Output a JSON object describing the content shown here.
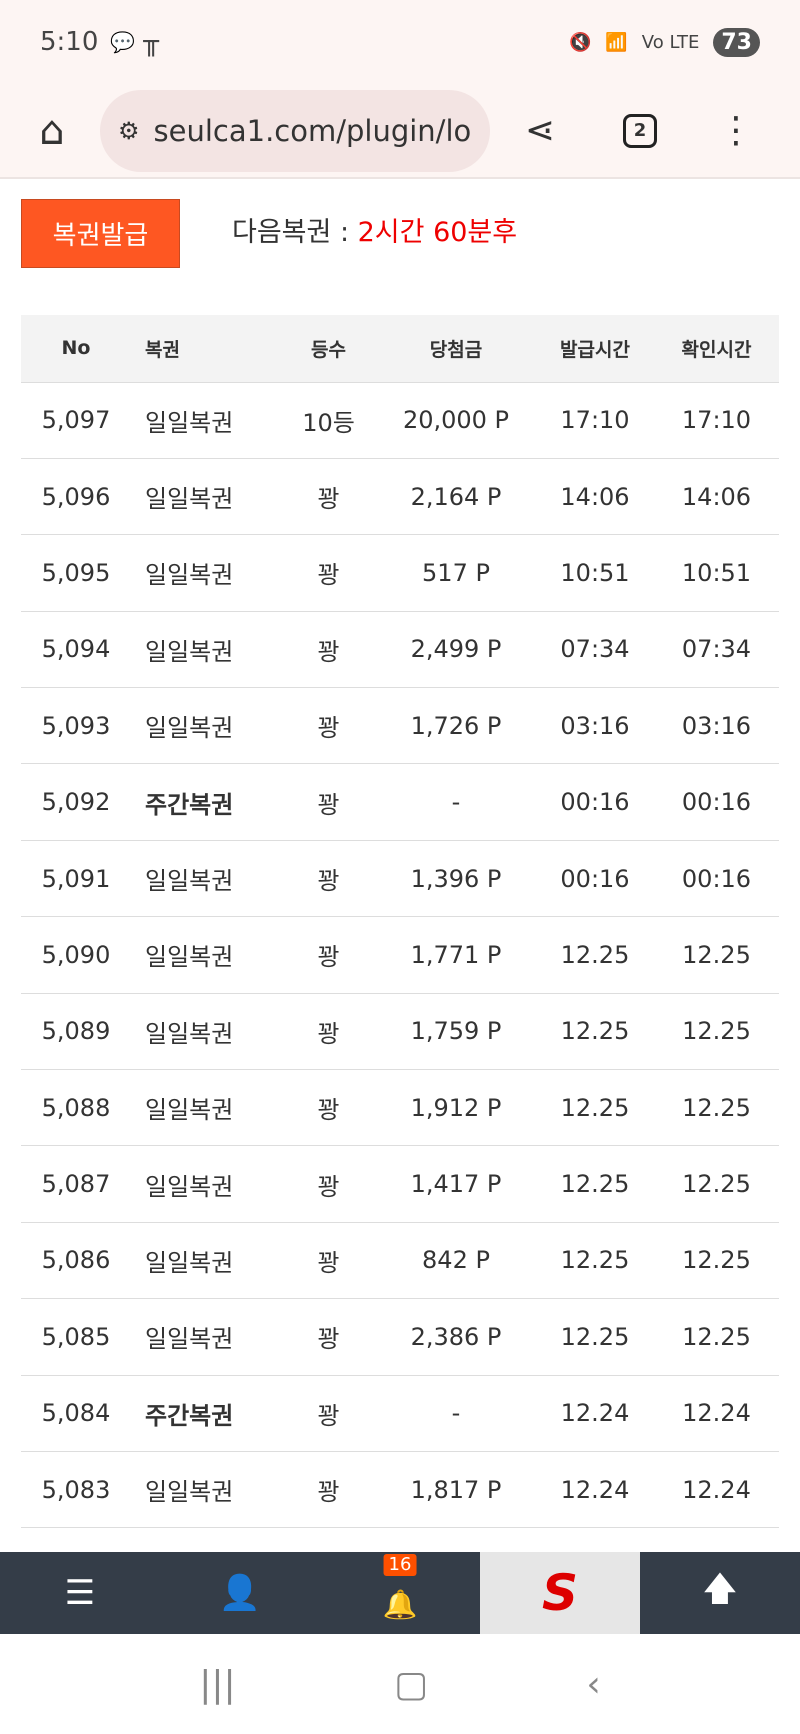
{
  "status": {
    "time": "5:10",
    "battery": "73",
    "network": "Vo LTE"
  },
  "browser": {
    "url": "seulca1.com/plugin/lo",
    "tab_count": "2"
  },
  "issue_button": "복권발급",
  "next_label": "다음복권 : ",
  "next_value": "2시간 60분후",
  "table": {
    "headers": [
      "No",
      "복권",
      "등수",
      "당첨금",
      "발급시간",
      "확인시간"
    ],
    "rows": [
      [
        "5,097",
        "일일복권",
        "10등",
        "20,000 P",
        "17:10",
        "17:10"
      ],
      [
        "5,096",
        "일일복권",
        "꽝",
        "2,164 P",
        "14:06",
        "14:06"
      ],
      [
        "5,095",
        "일일복권",
        "꽝",
        "517 P",
        "10:51",
        "10:51"
      ],
      [
        "5,094",
        "일일복권",
        "꽝",
        "2,499 P",
        "07:34",
        "07:34"
      ],
      [
        "5,093",
        "일일복권",
        "꽝",
        "1,726 P",
        "03:16",
        "03:16"
      ],
      [
        "5,092",
        "주간복권",
        "꽝",
        "-",
        "00:16",
        "00:16"
      ],
      [
        "5,091",
        "일일복권",
        "꽝",
        "1,396 P",
        "00:16",
        "00:16"
      ],
      [
        "5,090",
        "일일복권",
        "꽝",
        "1,771 P",
        "12.25",
        "12.25"
      ],
      [
        "5,089",
        "일일복권",
        "꽝",
        "1,759 P",
        "12.25",
        "12.25"
      ],
      [
        "5,088",
        "일일복권",
        "꽝",
        "1,912 P",
        "12.25",
        "12.25"
      ],
      [
        "5,087",
        "일일복권",
        "꽝",
        "1,417 P",
        "12.25",
        "12.25"
      ],
      [
        "5,086",
        "일일복권",
        "꽝",
        "842 P",
        "12.25",
        "12.25"
      ],
      [
        "5,085",
        "일일복권",
        "꽝",
        "2,386 P",
        "12.25",
        "12.25"
      ],
      [
        "5,084",
        "주간복권",
        "꽝",
        "-",
        "12.24",
        "12.24"
      ],
      [
        "5,083",
        "일일복권",
        "꽝",
        "1,817 P",
        "12.24",
        "12.24"
      ]
    ]
  },
  "bottom_nav": {
    "notification_count": "16",
    "logo": "S"
  }
}
